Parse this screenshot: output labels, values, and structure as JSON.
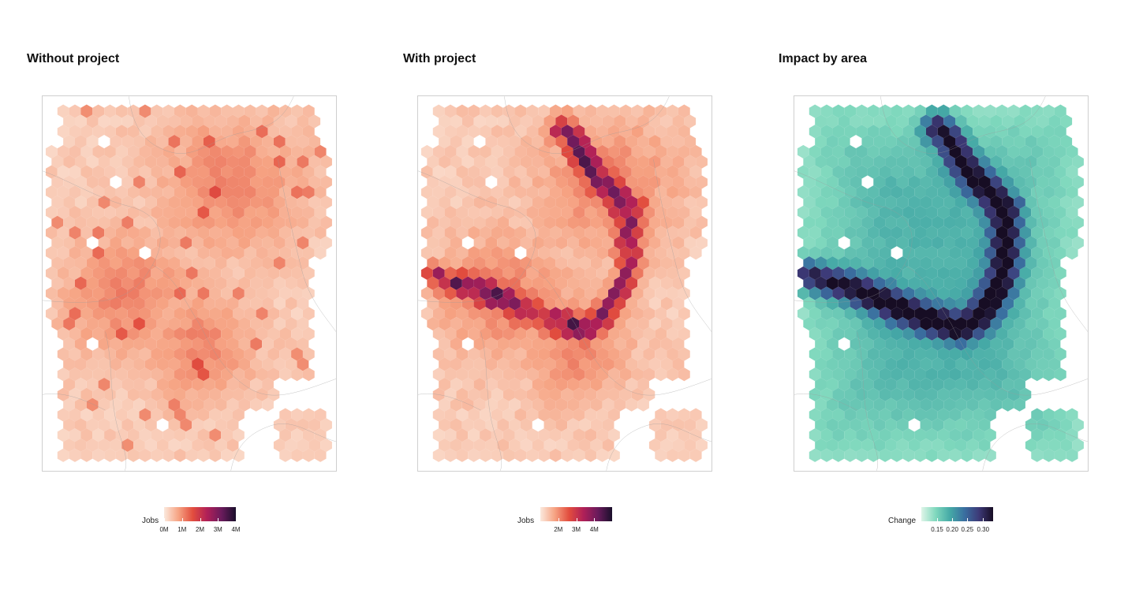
{
  "panels": [
    {
      "title": "Without project",
      "palette": "rocket",
      "legend": {
        "label": "Jobs",
        "ticks": [
          "0M",
          "1M",
          "2M",
          "3M",
          "4M"
        ],
        "tick_positions": [
          0,
          0.25,
          0.5,
          0.75,
          1.0
        ],
        "gradient": [
          "#fbe9dd",
          "#f6a383",
          "#e24d3e",
          "#b02058",
          "#6a1b5c",
          "#1a0f2b"
        ]
      }
    },
    {
      "title": "With project",
      "palette": "rocket",
      "legend": {
        "label": "Jobs",
        "ticks": [
          "2M",
          "3M",
          "4M"
        ],
        "tick_positions": [
          0.25,
          0.5,
          0.75
        ],
        "gradient": [
          "#fbe9dd",
          "#f6a383",
          "#e24d3e",
          "#b02058",
          "#6a1b5c",
          "#1a0f2b"
        ]
      }
    },
    {
      "title": "Impact by area",
      "palette": "mako",
      "legend": {
        "label": "Change",
        "ticks": [
          "0.15",
          "0.20",
          "0.25",
          "0.30"
        ],
        "tick_positions": [
          0.22,
          0.43,
          0.64,
          0.86
        ],
        "gradient": [
          "#dff5e8",
          "#7fd8bd",
          "#45a9a6",
          "#3a6fa0",
          "#3d3a78",
          "#170d24"
        ]
      }
    }
  ]
}
